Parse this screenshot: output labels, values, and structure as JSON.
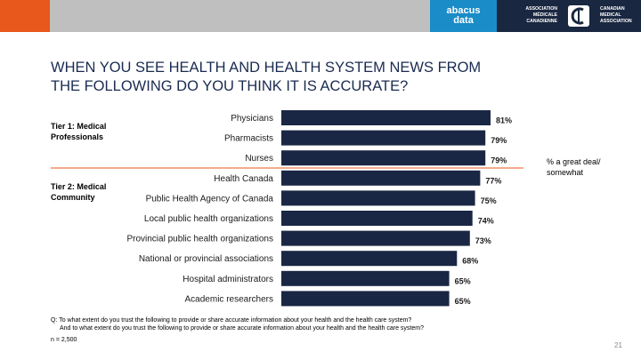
{
  "header": {
    "abacus_line1": "abacus",
    "abacus_line2": "data",
    "cma_fr": [
      "ASSOCIATION",
      "MÉDICALE",
      "CANADIENNE"
    ],
    "cma_en": [
      "CANADIAN",
      "MEDICAL",
      "ASSOCIATION"
    ]
  },
  "title_line1": "WHEN YOU SEE HEALTH AND HEALTH SYSTEM NEWS FROM",
  "title_line2": "THE FOLLOWING DO YOU THINK IT IS ACCURATE?",
  "tier1": "Tier 1: Medical Professionals",
  "tier2": "Tier 2: Medical Community",
  "note": "% a great deal/ somewhat",
  "footer": {
    "q1": "Q: To what extent do you trust the following to provide or share accurate information about your health and the health care system?",
    "q2": "And to what extent do you trust the following to provide or share accurate information about your health and the health care system?",
    "n": "n = 2,500"
  },
  "page_number": "21",
  "colors": {
    "bar": "#1a2744",
    "divider": "#e8571c",
    "accent_orange": "#e8571c",
    "accent_blue": "#1a8cc7"
  },
  "chart_data": {
    "type": "bar",
    "orientation": "horizontal",
    "categories": [
      "Physicians",
      "Pharmacists",
      "Nurses",
      "Health Canada",
      "Public Health Agency of Canada",
      "Local public health organizations",
      "Provincial public health organizations",
      "National or provincial associations",
      "Hospital administrators",
      "Academic researchers"
    ],
    "values": [
      81,
      79,
      79,
      77,
      75,
      74,
      73,
      68,
      65,
      65
    ],
    "value_suffix": "%",
    "xlim": [
      0,
      100
    ],
    "grid": false,
    "legend": "none"
  }
}
